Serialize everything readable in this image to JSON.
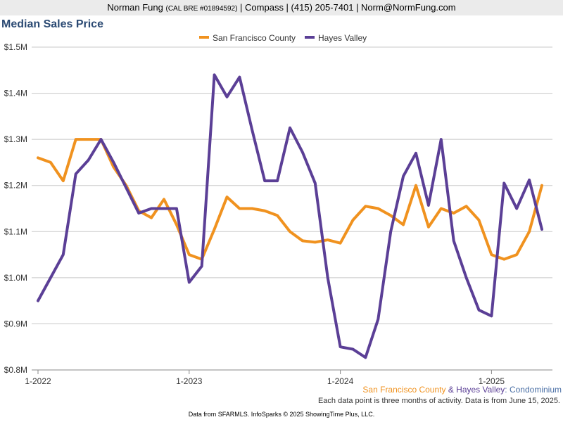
{
  "header": {
    "name": "Norman Fung",
    "license": "(CAL BRE #01894592)",
    "rest": "| Compass | (415) 205-7401 | Norm@NormFung.com"
  },
  "captions": {
    "sf": "San Francisco County",
    "amp": " & ",
    "hv": "Hayes Valley",
    "type": ": Condominium",
    "note": "Each data point is three months of activity. Data is from June 15, 2025.",
    "footer": "Data from SFARMLS. InfoSparks © 2025 ShowingTime Plus, LLC."
  },
  "colors": {
    "sf": "#f0921f",
    "hv": "#5b3f96",
    "grid": "#c8c8c8",
    "title": "#2b4a73"
  },
  "chart_data": {
    "type": "line",
    "title": "Median Sales Price",
    "xlabel": "",
    "ylabel": "",
    "ylim": [
      800000,
      1500000
    ],
    "y_ticks": [
      {
        "value": 800000,
        "label": "$0.8M"
      },
      {
        "value": 900000,
        "label": "$0.9M"
      },
      {
        "value": 1000000,
        "label": "$1.0M"
      },
      {
        "value": 1100000,
        "label": "$1.1M"
      },
      {
        "value": 1200000,
        "label": "$1.2M"
      },
      {
        "value": 1300000,
        "label": "$1.3M"
      },
      {
        "value": 1400000,
        "label": "$1.4M"
      },
      {
        "value": 1500000,
        "label": "$1.5M"
      }
    ],
    "x_ticks": [
      {
        "value": "2022-01",
        "label": "1-2022"
      },
      {
        "value": "2023-01",
        "label": "1-2023"
      },
      {
        "value": "2024-01",
        "label": "1-2024"
      },
      {
        "value": "2025-01",
        "label": "1-2025"
      }
    ],
    "x": [
      "2022-01",
      "2022-02",
      "2022-03",
      "2022-04",
      "2022-05",
      "2022-06",
      "2022-07",
      "2022-08",
      "2022-09",
      "2022-10",
      "2022-11",
      "2022-12",
      "2023-01",
      "2023-02",
      "2023-03",
      "2023-04",
      "2023-05",
      "2023-06",
      "2023-07",
      "2023-08",
      "2023-09",
      "2023-10",
      "2023-11",
      "2023-12",
      "2024-01",
      "2024-02",
      "2024-03",
      "2024-04",
      "2024-05",
      "2024-06",
      "2024-07",
      "2024-08",
      "2024-09",
      "2024-10",
      "2024-11",
      "2024-12",
      "2025-01",
      "2025-02",
      "2025-03",
      "2025-04",
      "2025-05"
    ],
    "legend_position": "top",
    "series": [
      {
        "name": "San Francisco County",
        "values": [
          1260000,
          1250000,
          1210000,
          1300000,
          1300000,
          1300000,
          1240000,
          1200000,
          1145000,
          1130000,
          1170000,
          1115000,
          1050000,
          1040000,
          1105000,
          1175000,
          1150000,
          1150000,
          1145000,
          1135000,
          1100000,
          1080000,
          1077000,
          1082000,
          1075000,
          1125000,
          1155000,
          1150000,
          1135000,
          1115000,
          1200000,
          1110000,
          1150000,
          1140000,
          1155000,
          1125000,
          1050000,
          1040000,
          1050000,
          1100000,
          1200000
        ]
      },
      {
        "name": "Hayes Valley",
        "values": [
          950000,
          1000000,
          1050000,
          1225000,
          1255000,
          1300000,
          1250000,
          1195000,
          1140000,
          1150000,
          1150000,
          1150000,
          990000,
          1025000,
          1440000,
          1392000,
          1435000,
          1320000,
          1210000,
          1210000,
          1325000,
          1272000,
          1205000,
          1000000,
          850000,
          845000,
          827000,
          910000,
          1100000,
          1220000,
          1270000,
          1157000,
          1300000,
          1080000,
          1000000,
          930000,
          917000,
          1205000,
          1150000,
          1212000,
          1105000
        ]
      }
    ]
  }
}
